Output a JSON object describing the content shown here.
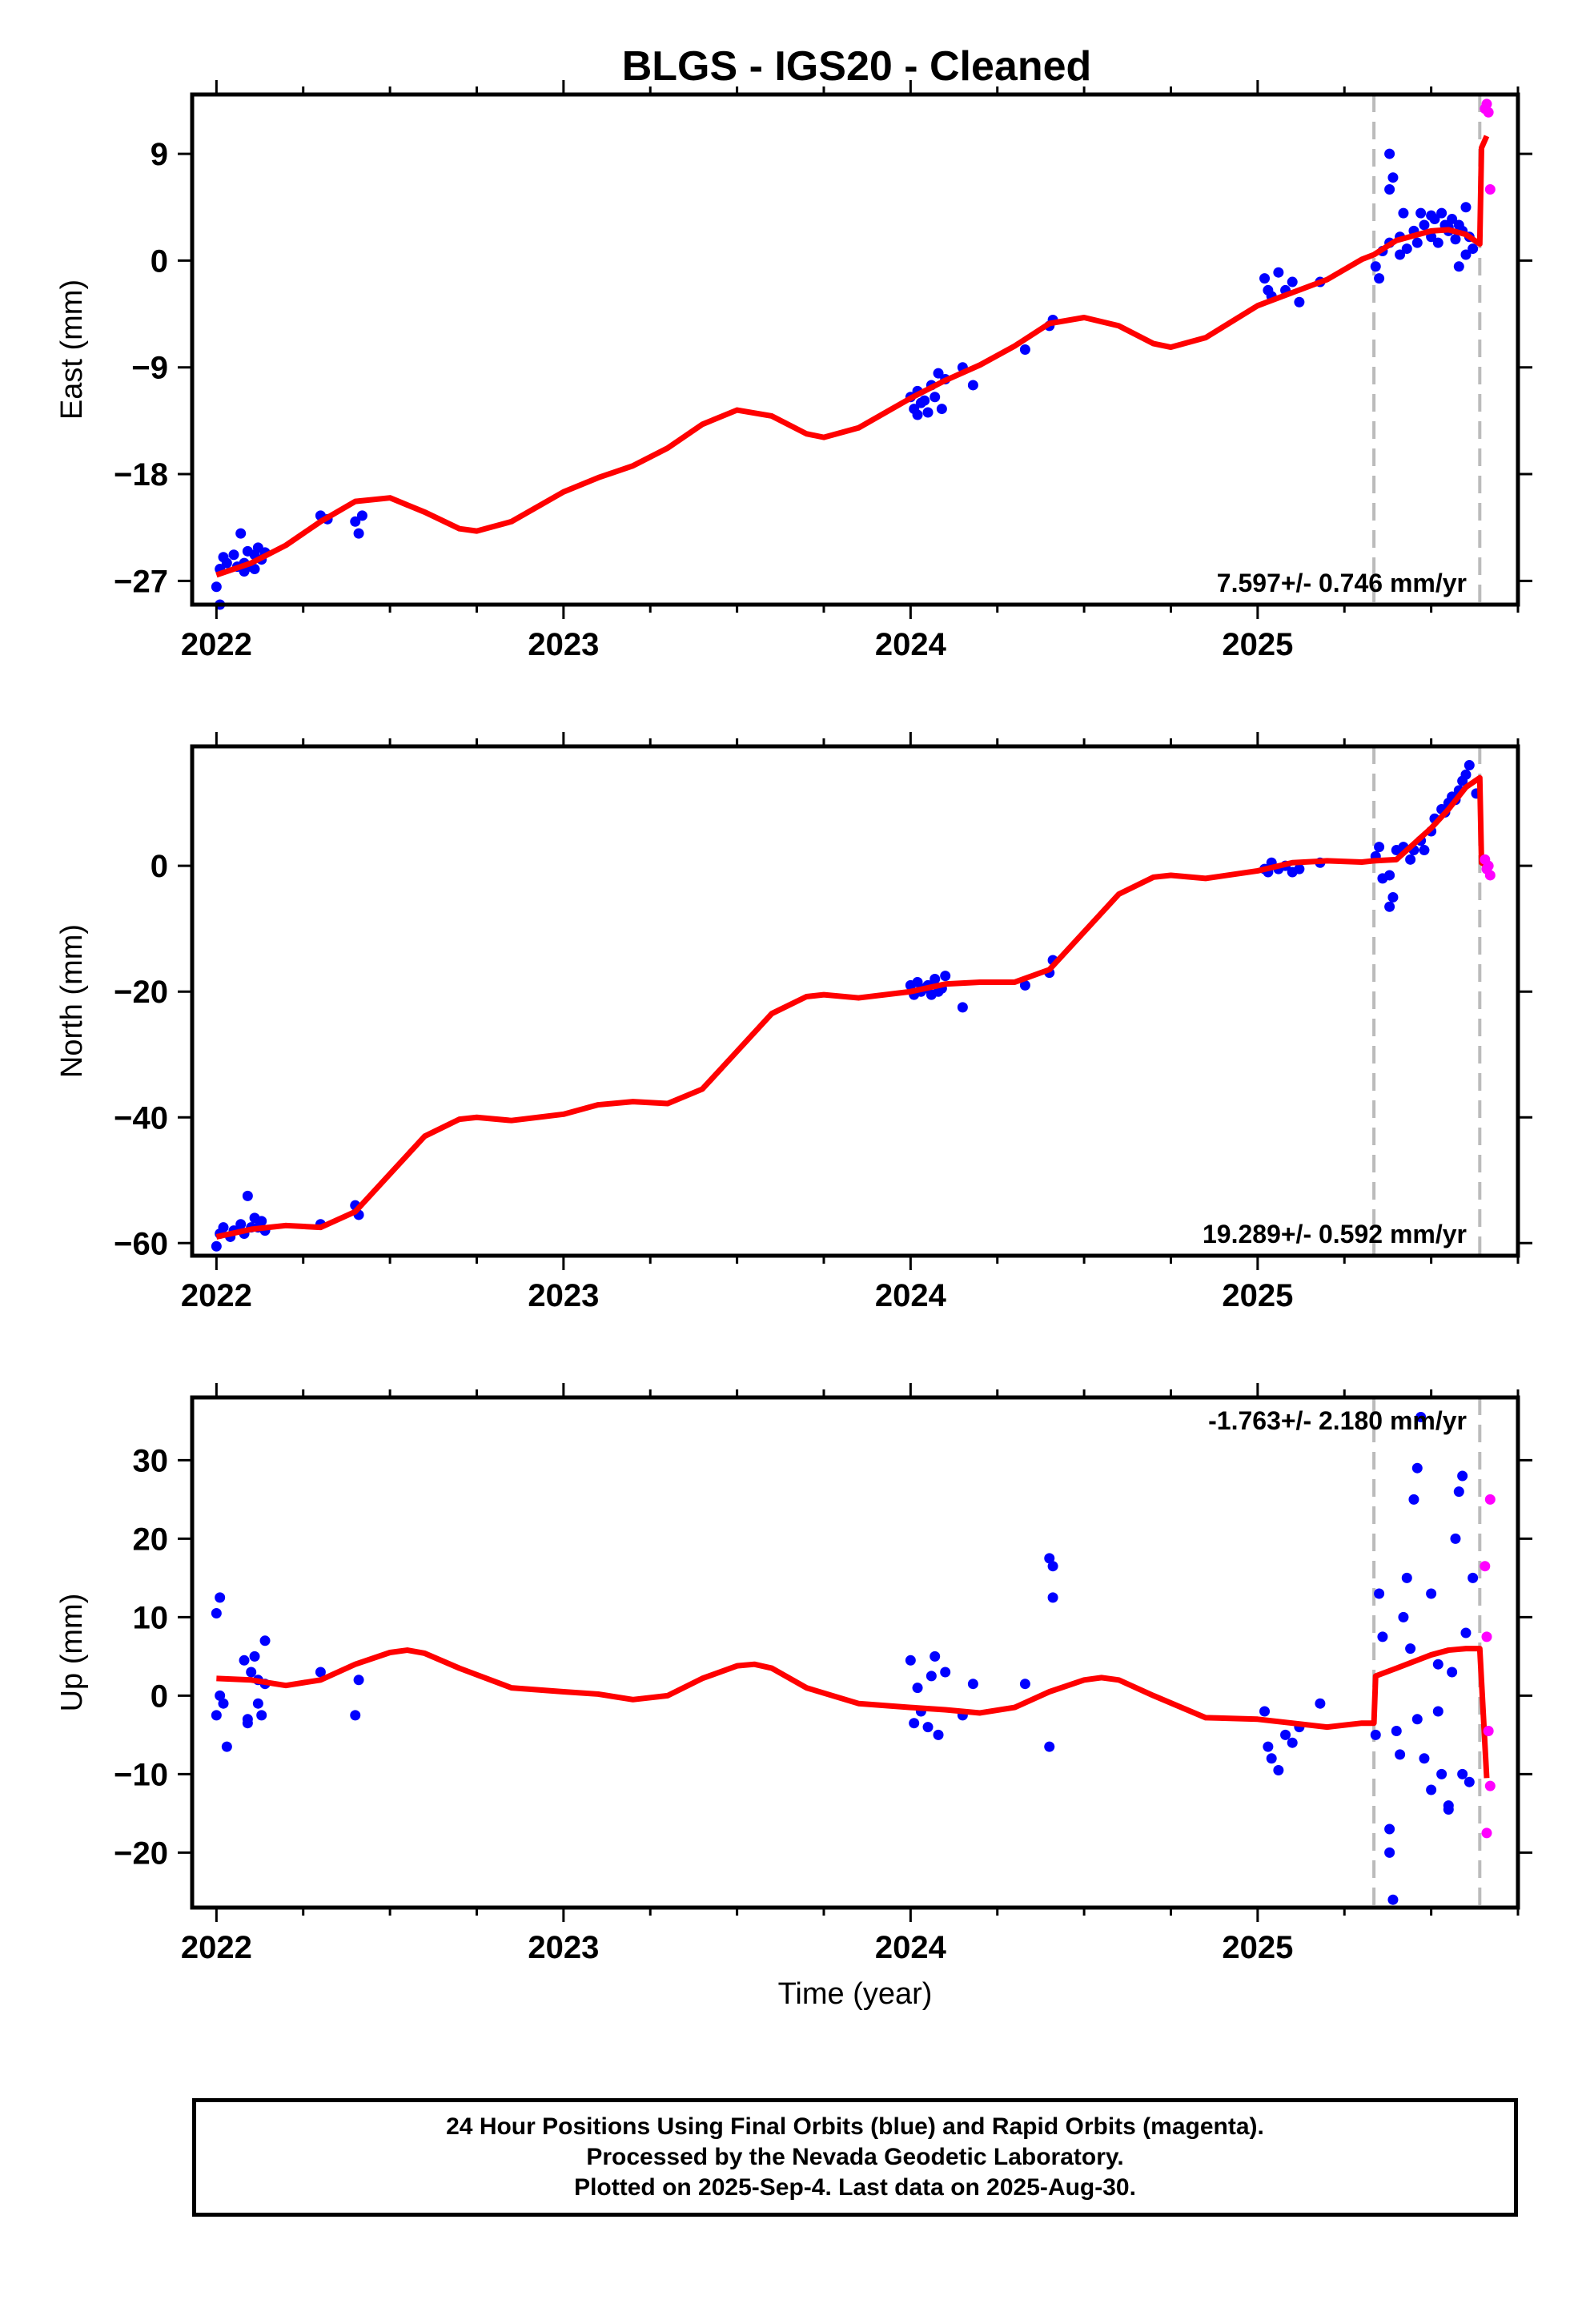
{
  "title": "BLGS  - IGS20 - Cleaned",
  "xlabel": "Time (year)",
  "footer": {
    "lines": [
      "24 Hour Positions Using Final Orbits (blue) and Rapid Orbits (magenta).",
      "Processed by the Nevada Geodetic Laboratory.",
      "Plotted on 2025-Sep-4. Last data on 2025-Aug-30."
    ]
  },
  "colors": {
    "final": "#0000ff",
    "rapid": "#ff00ff",
    "model": "#ff0000",
    "breaks": "#bbbbbb"
  },
  "chart_data": [
    {
      "type": "scatter",
      "panel": "East",
      "ylabel": "East (mm)",
      "xlim": [
        2021.93,
        2025.75
      ],
      "ylim": [
        -29,
        14
      ],
      "xticks": [
        2022,
        2023,
        2024,
        2025
      ],
      "yticks": [
        -27,
        -18,
        -9,
        0,
        9
      ],
      "rate_label": "7.597+/- 0.746 mm/yr",
      "rate_position": "bottom-right",
      "breaks": [
        2025.335,
        2025.64
      ],
      "model": {
        "x": [
          2022.0,
          2022.1,
          2022.2,
          2022.3,
          2022.4,
          2022.5,
          2022.6,
          2022.7,
          2022.75,
          2022.85,
          2023.0,
          2023.1,
          2023.2,
          2023.3,
          2023.4,
          2023.5,
          2023.6,
          2023.7,
          2023.75,
          2023.85,
          2024.0,
          2024.1,
          2024.2,
          2024.3,
          2024.4,
          2024.5,
          2024.6,
          2024.7,
          2024.75,
          2024.85,
          2025.0,
          2025.1,
          2025.2,
          2025.3,
          2025.335,
          2025.4,
          2025.5,
          2025.55,
          2025.6,
          2025.64,
          2025.645,
          2025.66
        ],
        "y": [
          -26.5,
          -25.5,
          -24.0,
          -22.0,
          -20.3,
          -20.0,
          -21.2,
          -22.6,
          -22.8,
          -22.0,
          -19.5,
          -18.3,
          -17.3,
          -15.8,
          -13.8,
          -12.6,
          -13.1,
          -14.6,
          -14.9,
          -14.1,
          -11.6,
          -10.1,
          -8.8,
          -7.2,
          -5.3,
          -4.8,
          -5.5,
          -7.0,
          -7.3,
          -6.5,
          -3.8,
          -2.7,
          -1.6,
          0.1,
          0.5,
          1.7,
          2.5,
          2.6,
          2.2,
          1.4,
          9.5,
          10.5
        ]
      },
      "final_points": {
        "x": [
          2022.0,
          2022.01,
          2022.01,
          2022.02,
          2022.03,
          2022.05,
          2022.06,
          2022.07,
          2022.08,
          2022.08,
          2022.09,
          2022.1,
          2022.11,
          2022.11,
          2022.12,
          2022.13,
          2022.14,
          2022.3,
          2022.32,
          2022.4,
          2022.41,
          2022.42,
          2024.0,
          2024.01,
          2024.02,
          2024.02,
          2024.03,
          2024.04,
          2024.05,
          2024.06,
          2024.07,
          2024.08,
          2024.09,
          2024.1,
          2024.15,
          2024.18,
          2024.33,
          2024.4,
          2024.41,
          2025.02,
          2025.03,
          2025.04,
          2025.06,
          2025.08,
          2025.1,
          2025.12,
          2025.18,
          2025.34,
          2025.35,
          2025.36,
          2025.38,
          2025.38,
          2025.39,
          2025.41,
          2025.42,
          2025.43,
          2025.45,
          2025.46,
          2025.47,
          2025.48,
          2025.5,
          2025.51,
          2025.52,
          2025.53,
          2025.54,
          2025.55,
          2025.56,
          2025.57,
          2025.58,
          2025.59,
          2025.6,
          2025.61,
          2025.62,
          2025.38,
          2025.41,
          2025.5,
          2025.55,
          2025.58,
          2025.6
        ],
        "y": [
          -27.5,
          -26.0,
          -29.0,
          -25.0,
          -25.5,
          -24.8,
          -25.8,
          -23.0,
          -25.5,
          -26.2,
          -24.5,
          -25.8,
          -24.8,
          -26.0,
          -24.2,
          -25.2,
          -24.6,
          -21.5,
          -21.8,
          -22.0,
          -23.0,
          -21.5,
          -11.5,
          -12.5,
          -11.0,
          -13.0,
          -12.0,
          -11.8,
          -12.8,
          -10.5,
          -11.5,
          -9.5,
          -12.5,
          -10.0,
          -9.0,
          -10.5,
          -7.5,
          -5.5,
          -5.0,
          -1.5,
          -2.5,
          -3.0,
          -1.0,
          -2.5,
          -1.8,
          -3.5,
          -1.8,
          -0.5,
          -1.5,
          0.8,
          1.5,
          9.0,
          7.0,
          2.0,
          4.0,
          1.0,
          2.5,
          1.5,
          4.0,
          3.0,
          2.0,
          3.5,
          1.5,
          4.0,
          3.0,
          2.5,
          3.5,
          1.8,
          3.0,
          2.5,
          4.5,
          2.0,
          1.0,
          6.0,
          0.5,
          3.8,
          2.8,
          -0.5,
          0.5
        ]
      },
      "rapid_points": {
        "x": [
          2025.655,
          2025.66,
          2025.665,
          2025.67
        ],
        "y": [
          12.8,
          13.2,
          12.5,
          6.0
        ]
      }
    },
    {
      "type": "scatter",
      "panel": "North",
      "ylabel": "North (mm)",
      "xlim": [
        2021.93,
        2025.75
      ],
      "ylim": [
        -62,
        19
      ],
      "xticks": [
        2022,
        2023,
        2024,
        2025
      ],
      "yticks": [
        -60,
        -40,
        -20,
        0
      ],
      "rate_label": "19.289+/- 0.592 mm/yr",
      "rate_position": "bottom-right",
      "breaks": [
        2025.335,
        2025.64
      ],
      "model": {
        "x": [
          2022.0,
          2022.1,
          2022.2,
          2022.3,
          2022.4,
          2022.5,
          2022.6,
          2022.7,
          2022.75,
          2022.85,
          2023.0,
          2023.1,
          2023.2,
          2023.3,
          2023.4,
          2023.5,
          2023.6,
          2023.7,
          2023.75,
          2023.85,
          2024.0,
          2024.1,
          2024.2,
          2024.3,
          2024.4,
          2024.5,
          2024.6,
          2024.7,
          2024.75,
          2024.85,
          2025.0,
          2025.1,
          2025.2,
          2025.3,
          2025.335,
          2025.4,
          2025.5,
          2025.55,
          2025.6,
          2025.64,
          2025.645,
          2025.66
        ],
        "y": [
          -59.0,
          -57.8,
          -57.2,
          -57.5,
          -55.0,
          -49.0,
          -43.0,
          -40.3,
          -40.0,
          -40.5,
          -39.5,
          -38.0,
          -37.5,
          -37.8,
          -35.5,
          -29.5,
          -23.5,
          -20.8,
          -20.5,
          -21.0,
          -20.0,
          -18.8,
          -18.5,
          -18.5,
          -16.5,
          -10.5,
          -4.5,
          -1.8,
          -1.5,
          -2.0,
          -0.8,
          0.5,
          0.8,
          0.6,
          0.8,
          1.0,
          6.0,
          9.0,
          12.5,
          14.0,
          0.5,
          0.0
        ]
      },
      "final_points": {
        "x": [
          2022.0,
          2022.01,
          2022.02,
          2022.04,
          2022.05,
          2022.07,
          2022.08,
          2022.09,
          2022.1,
          2022.11,
          2022.12,
          2022.13,
          2022.14,
          2022.3,
          2022.4,
          2022.41,
          2024.0,
          2024.01,
          2024.02,
          2024.03,
          2024.04,
          2024.05,
          2024.06,
          2024.07,
          2024.08,
          2024.09,
          2024.1,
          2024.15,
          2024.33,
          2024.4,
          2024.41,
          2025.02,
          2025.03,
          2025.04,
          2025.06,
          2025.08,
          2025.1,
          2025.12,
          2025.18,
          2025.34,
          2025.35,
          2025.36,
          2025.38,
          2025.38,
          2025.39,
          2025.4,
          2025.42,
          2025.44,
          2025.45,
          2025.47,
          2025.48,
          2025.5,
          2025.51,
          2025.53,
          2025.54,
          2025.55,
          2025.56,
          2025.57,
          2025.58,
          2025.59,
          2025.6,
          2025.61,
          2025.63
        ],
        "y": [
          -60.5,
          -58.5,
          -57.5,
          -59.0,
          -58.0,
          -57.0,
          -58.5,
          -52.5,
          -57.5,
          -56.0,
          -57.5,
          -56.5,
          -58.0,
          -57.0,
          -54.0,
          -55.5,
          -19.0,
          -20.5,
          -18.5,
          -20.0,
          -19.5,
          -19.0,
          -20.5,
          -18.0,
          -20.0,
          -19.5,
          -17.5,
          -22.5,
          -19.0,
          -17.0,
          -15.0,
          -0.5,
          -1.0,
          0.5,
          -0.5,
          0.0,
          -1.0,
          -0.5,
          0.5,
          1.5,
          3.0,
          -2.0,
          -1.5,
          -6.5,
          -5.0,
          2.5,
          3.0,
          1.0,
          2.5,
          4.0,
          2.5,
          5.5,
          7.5,
          9.0,
          8.5,
          10.0,
          11.0,
          10.5,
          12.0,
          13.5,
          14.5,
          16.0,
          11.5
        ]
      },
      "rapid_points": {
        "x": [
          2025.655,
          2025.66,
          2025.665,
          2025.67
        ],
        "y": [
          1.0,
          -0.5,
          0.0,
          -1.5
        ]
      }
    },
    {
      "type": "scatter",
      "panel": "Up",
      "ylabel": "Up (mm)",
      "xlim": [
        2021.93,
        2025.75
      ],
      "ylim": [
        -27,
        38
      ],
      "xticks": [
        2022,
        2023,
        2024,
        2025
      ],
      "yticks": [
        -20,
        -10,
        0,
        10,
        20,
        30
      ],
      "rate_label": "-1.763+/- 2.180 mm/yr",
      "rate_position": "top-right",
      "breaks": [
        2025.335,
        2025.64
      ],
      "model": {
        "x": [
          2022.0,
          2022.1,
          2022.2,
          2022.3,
          2022.4,
          2022.5,
          2022.55,
          2022.6,
          2022.7,
          2022.85,
          2023.0,
          2023.1,
          2023.2,
          2023.3,
          2023.4,
          2023.5,
          2023.55,
          2023.6,
          2023.7,
          2023.85,
          2024.0,
          2024.1,
          2024.2,
          2024.3,
          2024.4,
          2024.5,
          2024.55,
          2024.6,
          2024.7,
          2024.85,
          2025.0,
          2025.1,
          2025.2,
          2025.3,
          2025.335,
          2025.34,
          2025.4,
          2025.5,
          2025.55,
          2025.6,
          2025.64,
          2025.66
        ],
        "y": [
          2.2,
          2.0,
          1.3,
          2.0,
          4.0,
          5.5,
          5.8,
          5.4,
          3.5,
          1.0,
          0.5,
          0.2,
          -0.5,
          0.0,
          2.2,
          3.8,
          4.0,
          3.5,
          1.0,
          -1.0,
          -1.5,
          -1.8,
          -2.2,
          -1.5,
          0.5,
          2.0,
          2.3,
          2.0,
          0.0,
          -2.8,
          -3.0,
          -3.5,
          -4.0,
          -3.5,
          -3.5,
          2.5,
          3.5,
          5.2,
          5.8,
          6.0,
          6.0,
          -10.5
        ]
      },
      "final_points": {
        "x": [
          2022.0,
          2022.01,
          2022.02,
          2022.03,
          2022.0,
          2022.01,
          2022.09,
          2022.1,
          2022.11,
          2022.12,
          2022.13,
          2022.14,
          2022.08,
          2022.09,
          2022.12,
          2022.14,
          2022.3,
          2022.4,
          2022.41,
          2024.0,
          2024.01,
          2024.02,
          2024.03,
          2024.05,
          2024.06,
          2024.07,
          2024.08,
          2024.1,
          2024.15,
          2024.18,
          2024.33,
          2024.4,
          2024.41,
          2024.41,
          2024.4,
          2025.02,
          2025.03,
          2025.04,
          2025.06,
          2025.08,
          2025.1,
          2025.12,
          2025.18,
          2025.34,
          2025.35,
          2025.36,
          2025.38,
          2025.39,
          2025.4,
          2025.42,
          2025.43,
          2025.44,
          2025.45,
          2025.46,
          2025.47,
          2025.48,
          2025.5,
          2025.5,
          2025.52,
          2025.53,
          2025.55,
          2025.56,
          2025.57,
          2025.58,
          2025.59,
          2025.6,
          2025.61,
          2025.62,
          2025.38,
          2025.41,
          2025.46,
          2025.52,
          2025.55,
          2025.59
        ],
        "y": [
          10.5,
          12.5,
          -1.0,
          -6.5,
          -2.5,
          0.0,
          -3.5,
          3.0,
          5.0,
          2.0,
          -2.5,
          7.0,
          4.5,
          -3.0,
          -1.0,
          1.5,
          3.0,
          -2.5,
          2.0,
          4.5,
          -3.5,
          1.0,
          -2.0,
          -4.0,
          2.5,
          5.0,
          -5.0,
          3.0,
          -2.5,
          1.5,
          1.5,
          17.5,
          16.5,
          12.5,
          -6.5,
          -2.0,
          -6.5,
          -8.0,
          -9.5,
          -5.0,
          -6.0,
          -4.0,
          -1.0,
          -5.0,
          13.0,
          7.5,
          -20.0,
          -26.0,
          -4.5,
          10.0,
          15.0,
          6.0,
          25.0,
          29.0,
          35.5,
          -8.0,
          -12.0,
          13.0,
          4.0,
          -10.0,
          -14.0,
          3.0,
          20.0,
          26.0,
          28.0,
          8.0,
          -11.0,
          15.0,
          -17.0,
          -7.5,
          -3.0,
          -2.0,
          -14.5,
          -10.0
        ]
      },
      "rapid_points": {
        "x": [
          2025.655,
          2025.66,
          2025.665,
          2025.67,
          2025.66,
          2025.67
        ],
        "y": [
          16.5,
          7.5,
          -4.5,
          -11.5,
          -17.5,
          25.0
        ]
      }
    }
  ]
}
